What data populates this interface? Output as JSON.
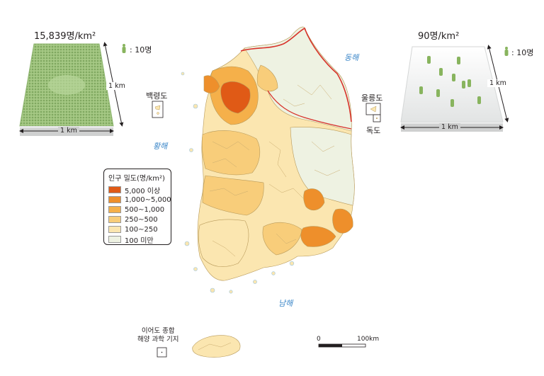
{
  "left_panel": {
    "density": "15,839명/km²",
    "person_unit": ": 10명",
    "side_label": "1 km",
    "bottom_label": "1 km"
  },
  "right_panel": {
    "density": "90명/km²",
    "person_unit": ": 10명",
    "side_label": "1 km",
    "bottom_label": "1 km"
  },
  "seas": {
    "east": "동해",
    "west": "황해",
    "south": "남해"
  },
  "islands": {
    "baengnyeong": "백령도",
    "ulleung": "울릉도",
    "dokdo": "독도",
    "ieodo_line1": "이어도 종합",
    "ieodo_line2": "해양 과학 기지"
  },
  "legend": {
    "title": "인구 밀도(명/km²)",
    "items": [
      {
        "label": "5,000 이상",
        "color": "#e05a16"
      },
      {
        "label": "1,000∼5,000",
        "color": "#ee8f2b"
      },
      {
        "label": "500∼1,000",
        "color": "#f5b04a"
      },
      {
        "label": "250∼500",
        "color": "#f8cd7a"
      },
      {
        "label": "100∼250",
        "color": "#fbe6b0"
      },
      {
        "label": "100 미만",
        "color": "#eef2e2"
      }
    ]
  },
  "scale": {
    "start": "0",
    "end": "100km"
  }
}
